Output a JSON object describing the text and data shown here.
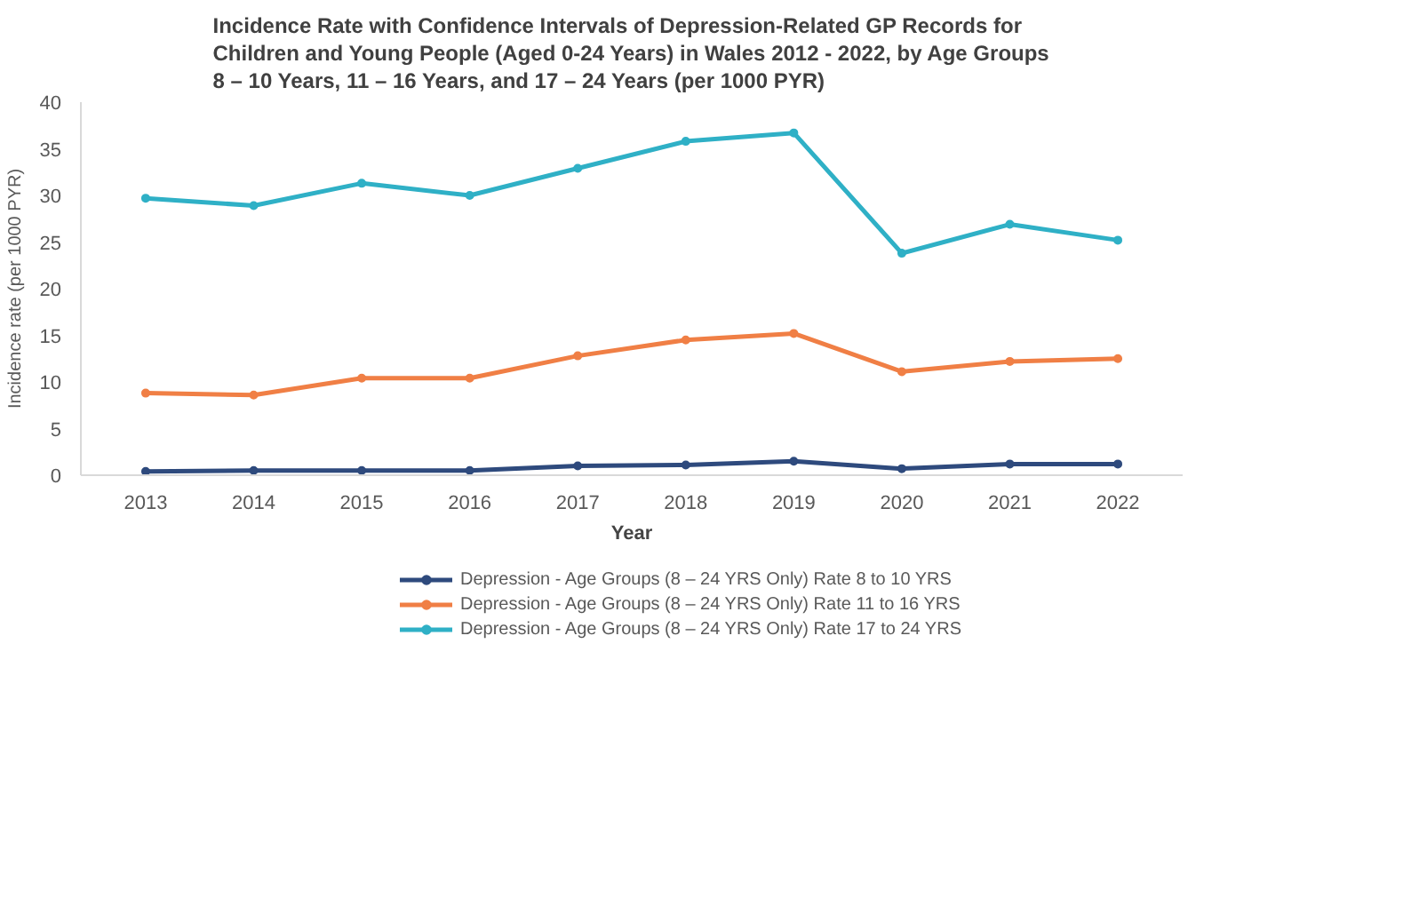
{
  "chart_data": {
    "type": "line",
    "title": "Incidence Rate with Confidence Intervals of Depression-Related GP Records for Children and Young People (Aged 0-24 Years) in Wales 2012 - 2022, by Age Groups 8 – 10 Years, 11 – 16 Years, and 17 – 24 Years (per 1000 PYR)",
    "xlabel": "Year",
    "ylabel": "Incidence rate (per 1000 PYR)",
    "categories": [
      "2013",
      "2014",
      "2015",
      "2016",
      "2017",
      "2018",
      "2019",
      "2020",
      "2021",
      "2022"
    ],
    "series": [
      {
        "name": "Depression - Age Groups (8 – 24 YRS Only) Rate 8 to 10 YRS",
        "color": "#2e4a7d",
        "values": [
          0.4,
          0.5,
          0.5,
          0.5,
          1.0,
          1.1,
          1.5,
          0.7,
          1.2,
          1.2
        ]
      },
      {
        "name": "Depression - Age Groups (8 – 24 YRS Only) Rate 11 to 16 YRS",
        "color": "#f07f45",
        "values": [
          8.8,
          8.6,
          10.4,
          10.4,
          12.8,
          14.5,
          15.2,
          11.1,
          12.2,
          12.5
        ]
      },
      {
        "name": "Depression - Age Groups (8 – 24 YRS Only) Rate 17 to 24 YRS",
        "color": "#2fb0c6",
        "values": [
          29.7,
          28.9,
          31.3,
          30.0,
          32.9,
          35.8,
          36.7,
          23.8,
          26.9,
          25.2
        ]
      }
    ],
    "ylim": [
      0,
      40
    ],
    "yticks": [
      0,
      5,
      10,
      15,
      20,
      25,
      30,
      35,
      40
    ],
    "grid": false,
    "legend": "bottom",
    "marker": "circle",
    "line_style": "solid"
  }
}
